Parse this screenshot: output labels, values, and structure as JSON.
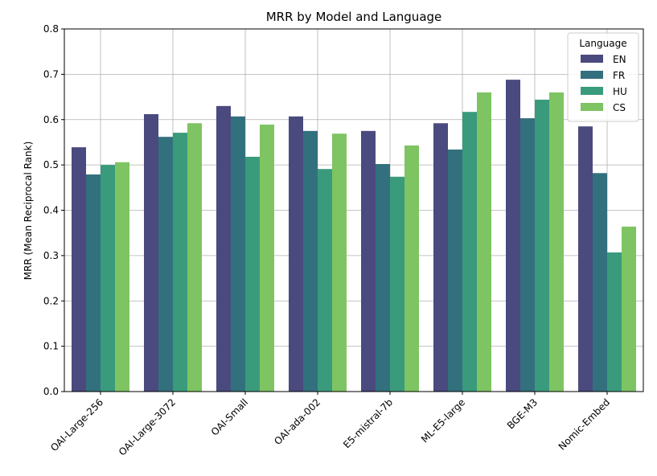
{
  "chart_data": {
    "type": "bar",
    "title": "MRR by Model and Language",
    "xlabel": "",
    "ylabel": "MRR  (Mean Reciprocal Rank)",
    "ylim": [
      0,
      0.8
    ],
    "yticks": [
      "0.0",
      "0.1",
      "0.2",
      "0.3",
      "0.4",
      "0.5",
      "0.6",
      "0.7",
      "0.8"
    ],
    "grid": true,
    "legend": {
      "title": "Language",
      "placement": "top-right"
    },
    "categories": [
      "OAI-Large-256",
      "OAI-Large-3072",
      "OAI-Small",
      "OAI-ada-002",
      "E5-mistral-7b",
      "ML-E5-large",
      "BGE-M3",
      "Nomic-Embed"
    ],
    "series": [
      {
        "name": "EN",
        "color": "#4a4a7e",
        "values": [
          0.539,
          0.612,
          0.63,
          0.607,
          0.575,
          0.592,
          0.688,
          0.585
        ]
      },
      {
        "name": "FR",
        "color": "#33707e",
        "values": [
          0.479,
          0.562,
          0.607,
          0.575,
          0.502,
          0.534,
          0.603,
          0.482
        ]
      },
      {
        "name": "HU",
        "color": "#3a9a7c",
        "values": [
          0.5,
          0.571,
          0.518,
          0.491,
          0.474,
          0.617,
          0.644,
          0.307
        ]
      },
      {
        "name": "CS",
        "color": "#7ec462",
        "values": [
          0.506,
          0.592,
          0.589,
          0.569,
          0.543,
          0.66,
          0.66,
          0.364
        ]
      }
    ]
  }
}
